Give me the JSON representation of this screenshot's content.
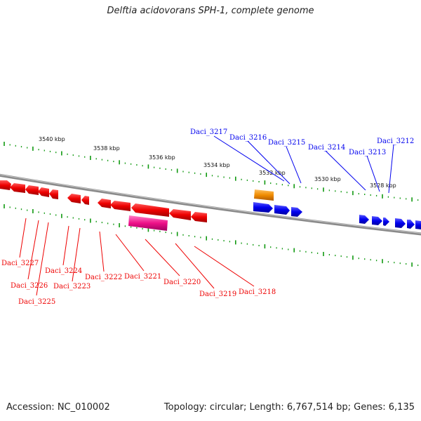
{
  "title": "Delftia acidovorans SPH-1, complete genome",
  "accession_text": "Accession: NC_010002",
  "summary_text": "Topology: circular; Length: 6,767,514 bp; Genes: 6,135",
  "colors": {
    "forward_strand": "#0000ee",
    "reverse_strand": "#ee0000",
    "rna_feature": "#f08c00",
    "other_feature": "#ee1188",
    "tick_marks": "#119911",
    "backbone": "#8a8a8a"
  },
  "scale_labels": [
    "3540 kbp",
    "3538 kbp",
    "3536 kbp",
    "3534 kbp",
    "3532 kbp",
    "3530 kbp",
    "3528 kbp"
  ],
  "forward_labels": [
    "Daci_3217",
    "Daci_3216",
    "Daci_3215",
    "Daci_3214",
    "Daci_3213",
    "Daci_3212"
  ],
  "reverse_labels": [
    "Daci_3227",
    "Daci_3226",
    "Daci_3225",
    "Daci_3224",
    "Daci_3223",
    "Daci_3222",
    "Daci_3221",
    "Daci_3220",
    "Daci_3219",
    "Daci_3218"
  ]
}
